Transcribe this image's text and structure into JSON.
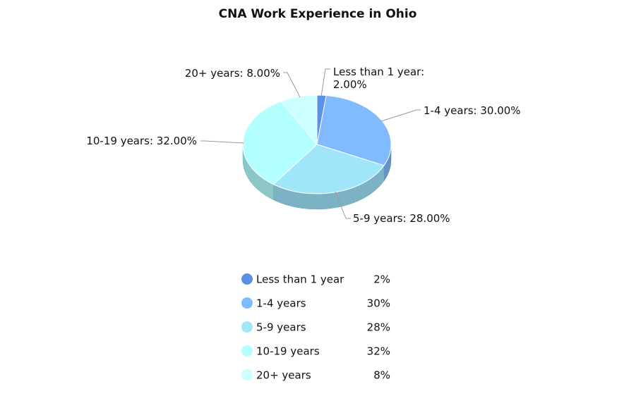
{
  "chart_data": {
    "type": "pie3d",
    "title": "CNA Work Experience in Ohio",
    "categories": [
      "Less than 1 year",
      "1-4 years",
      "5-9 years",
      "10-19 years",
      "20+ years"
    ],
    "values": [
      2,
      30,
      28,
      32,
      8
    ],
    "slice_labels": [
      [
        "Less than 1 year:",
        "2.00%"
      ],
      [
        "1-4 years: 30.00%"
      ],
      [
        "5-9 years: 28.00%"
      ],
      [
        "10-19 years: 32.00%"
      ],
      [
        "20+ years: 8.00%"
      ]
    ],
    "legend_value_labels": [
      "2%",
      "30%",
      "28%",
      "32%",
      "8%"
    ],
    "colors": [
      "#5c90e6",
      "#80bbff",
      "#9fe6fb",
      "#b3ffff",
      "#ccffff"
    ]
  }
}
